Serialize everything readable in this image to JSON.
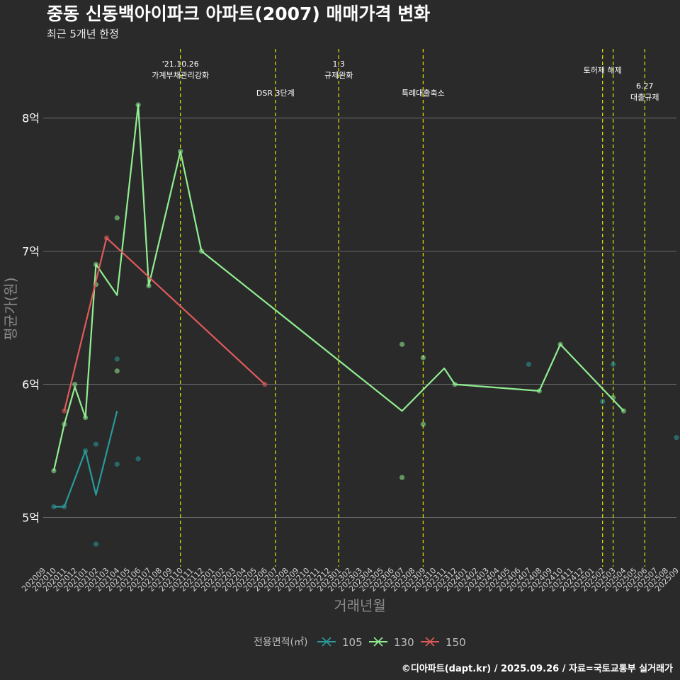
{
  "chart_data": {
    "type": "line",
    "title": "중동 신동백아이파크 아파트(2007) 매매가격 변화",
    "subtitle": "최근 5개년 한정",
    "xlabel": "거래년월",
    "ylabel": "평균가(원)",
    "caption": "©디아파트(dapt.kr) / 2025.09.26 / 자료=국토교통부 실거래가",
    "legend_title": "전용면적(㎡)",
    "legend_position": "bottom",
    "categories": [
      "202009",
      "202010",
      "202011",
      "202012",
      "202101",
      "202102",
      "202103",
      "202104",
      "202105",
      "202106",
      "202107",
      "202108",
      "202109",
      "202110",
      "202111",
      "202112",
      "202201",
      "202202",
      "202203",
      "202204",
      "202205",
      "202206",
      "202207",
      "202208",
      "202209",
      "202210",
      "202211",
      "202212",
      "202301",
      "202302",
      "202303",
      "202304",
      "202305",
      "202306",
      "202307",
      "202308",
      "202309",
      "202310",
      "202311",
      "202312",
      "202401",
      "202402",
      "202403",
      "202404",
      "202405",
      "202406",
      "202407",
      "202408",
      "202409",
      "202410",
      "202411",
      "202412",
      "202501",
      "202502",
      "202503",
      "202504",
      "202505",
      "202506",
      "202507",
      "202508",
      "202509"
    ],
    "y_ticks": [
      5,
      6,
      7,
      8
    ],
    "y_tick_labels": [
      "5억",
      "6억",
      "7억",
      "8억"
    ],
    "ylim": [
      4.63,
      8.52
    ],
    "series": [
      {
        "name": "105",
        "color": "#2a9a9a",
        "line": [
          [
            "202010",
            5.08
          ],
          [
            "202011",
            5.08
          ],
          [
            "202101",
            5.5
          ],
          [
            "202102",
            5.17
          ],
          [
            "202104",
            5.8
          ]
        ],
        "points": [
          [
            "202010",
            5.08
          ],
          [
            "202011",
            5.08
          ],
          [
            "202101",
            5.5
          ],
          [
            "202102",
            5.55
          ],
          [
            "202102",
            4.8
          ],
          [
            "202104",
            6.19
          ],
          [
            "202104",
            5.4
          ],
          [
            "202106",
            5.44
          ],
          [
            "202407",
            6.15
          ],
          [
            "202502",
            5.87
          ],
          [
            "202503",
            6.15
          ],
          [
            "202509",
            5.6
          ]
        ]
      },
      {
        "name": "130",
        "color": "#90ee90",
        "line": [
          [
            "202010",
            5.35
          ],
          [
            "202011",
            5.7
          ],
          [
            "202012",
            5.98
          ],
          [
            "202101",
            5.75
          ],
          [
            "202102",
            6.9
          ],
          [
            "202104",
            6.67
          ],
          [
            "202106",
            8.1
          ],
          [
            "202107",
            6.74
          ],
          [
            "202110",
            7.75
          ],
          [
            "202112",
            7.0
          ],
          [
            "202307",
            5.8
          ],
          [
            "202311",
            6.12
          ],
          [
            "202312",
            6.0
          ],
          [
            "202408",
            5.95
          ],
          [
            "202410",
            6.3
          ],
          [
            "202504",
            5.8
          ]
        ],
        "points": [
          [
            "202010",
            5.35
          ],
          [
            "202011",
            5.7
          ],
          [
            "202012",
            6.0
          ],
          [
            "202101",
            5.75
          ],
          [
            "202102",
            6.9
          ],
          [
            "202102",
            6.75
          ],
          [
            "202104",
            7.25
          ],
          [
            "202104",
            6.1
          ],
          [
            "202106",
            8.1
          ],
          [
            "202107",
            6.74
          ],
          [
            "202110",
            7.75
          ],
          [
            "202112",
            7.0
          ],
          [
            "202307",
            6.3
          ],
          [
            "202307",
            5.3
          ],
          [
            "202309",
            6.2
          ],
          [
            "202309",
            5.7
          ],
          [
            "202312",
            6.0
          ],
          [
            "202408",
            5.95
          ],
          [
            "202410",
            6.3
          ],
          [
            "202503",
            5.9
          ],
          [
            "202504",
            5.8
          ]
        ]
      },
      {
        "name": "150",
        "color": "#e05a5a",
        "line": [
          [
            "202011",
            5.8
          ],
          [
            "202103",
            7.1
          ],
          [
            "202206",
            6.0
          ]
        ],
        "points": [
          [
            "202011",
            5.8
          ],
          [
            "202103",
            7.1
          ],
          [
            "202206",
            6.0
          ]
        ]
      }
    ],
    "events": [
      {
        "month": "202110",
        "lines": [
          "'21.10.26",
          "가계부채관리강화"
        ],
        "row": "top"
      },
      {
        "month": "202207",
        "lines": [
          "DSR 3단계"
        ],
        "row": "bottom"
      },
      {
        "month": "202301",
        "lines": [
          "1.3",
          "규제완화"
        ],
        "row": "top"
      },
      {
        "month": "202309",
        "lines": [
          "특례대출축소"
        ],
        "row": "bottom"
      },
      {
        "month": "202502",
        "lines": [
          "토허제 해제"
        ],
        "row": "mid"
      },
      {
        "month": "202503",
        "lines": [],
        "row": "none"
      },
      {
        "month": "202506",
        "lines": [
          "6.27",
          "대출규제"
        ],
        "row": "low"
      }
    ],
    "grid": true
  }
}
